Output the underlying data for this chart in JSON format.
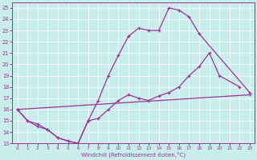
{
  "xlabel": "Windchill (Refroidissement éolien,°C)",
  "xlim": [
    -0.5,
    23.5
  ],
  "ylim": [
    13,
    25.5
  ],
  "xticks": [
    0,
    1,
    2,
    3,
    4,
    5,
    6,
    7,
    8,
    9,
    10,
    11,
    12,
    13,
    14,
    15,
    16,
    17,
    18,
    19,
    20,
    21,
    22,
    23
  ],
  "yticks": [
    13,
    14,
    15,
    16,
    17,
    18,
    19,
    20,
    21,
    22,
    23,
    24,
    25
  ],
  "bg_color": "#c8edeb",
  "line_color": "#993399",
  "grid_color": "#ffffff",
  "curve1_x": [
    0,
    1,
    2,
    3,
    4,
    5,
    6,
    7,
    8,
    9,
    10,
    11,
    12,
    13,
    14,
    15,
    16,
    17,
    18,
    23
  ],
  "curve1_y": [
    16,
    15,
    14.5,
    14.2,
    13.5,
    13.2,
    13.0,
    15.0,
    16.8,
    19.0,
    20.8,
    22.5,
    23.2,
    23.0,
    23.0,
    25.0,
    24.8,
    24.2,
    22.7,
    17.5
  ],
  "curve2_x": [
    0,
    1,
    2,
    3,
    4,
    5,
    6,
    7,
    8,
    9,
    10,
    11,
    12,
    13,
    14,
    15,
    16,
    17,
    18,
    19,
    20,
    22
  ],
  "curve2_y": [
    16.0,
    15.0,
    14.7,
    14.2,
    13.5,
    13.2,
    13.0,
    15.0,
    15.2,
    16.0,
    16.8,
    17.3,
    17.0,
    16.8,
    17.2,
    17.5,
    18.0,
    19.0,
    19.8,
    21.0,
    19.0,
    18.0
  ],
  "curve3_x": [
    0,
    23
  ],
  "curve3_y": [
    16.0,
    17.3
  ]
}
